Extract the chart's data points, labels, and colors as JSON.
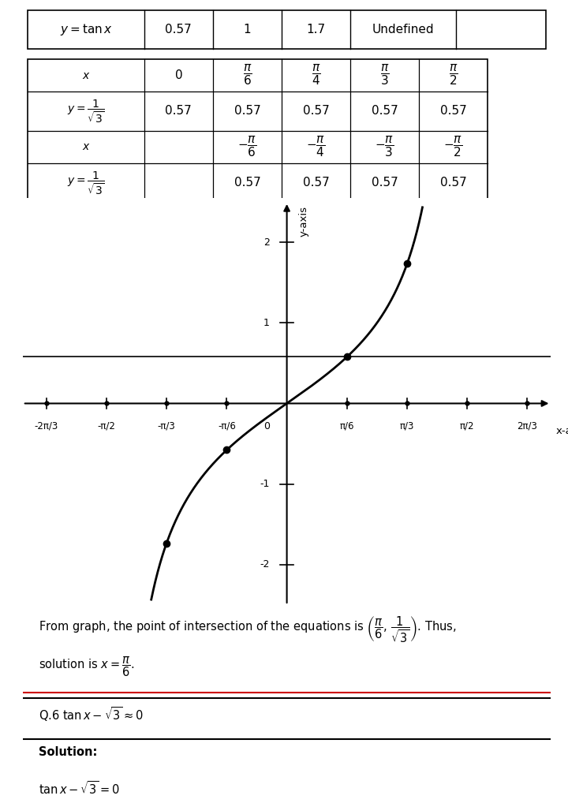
{
  "table1_headers": [
    "y = tan x",
    "0.57",
    "1",
    "1.7",
    "Undefined",
    ""
  ],
  "xlim": [
    -2.3,
    2.3
  ],
  "ylim": [
    -2.5,
    2.5
  ],
  "xticks": [
    -2.094,
    -1.571,
    -1.047,
    -0.524,
    0.524,
    1.047,
    1.571,
    2.094
  ],
  "xtick_labels": [
    "-2π/3",
    "-π/2",
    "-π/3",
    "-π/6",
    "π/6",
    "π/3",
    "π/2",
    "2π/3"
  ],
  "yticks": [
    -2,
    -1,
    1,
    2
  ],
  "ytick_labels": [
    "-2",
    "-1",
    "1",
    "2"
  ],
  "dot_points_x": [
    -1.047,
    -0.524,
    0.524,
    1.047
  ],
  "dot_points_y": [
    -1.732,
    -0.577,
    0.577,
    1.732
  ],
  "hline_y": 0.577,
  "xlabel": "x-axis",
  "ylabel": "y-axis",
  "bg_color": "#ffffff"
}
